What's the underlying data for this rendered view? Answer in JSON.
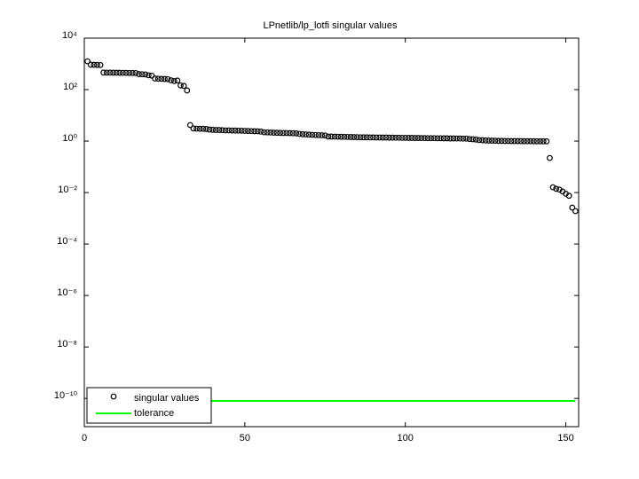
{
  "chart_data": {
    "type": "scatter",
    "title": "LPnetlib/lp_lotfi singular values",
    "log_y": true,
    "legend": "lower left",
    "xlim": [
      0,
      154
    ],
    "xticks": [
      0,
      50,
      100,
      150
    ],
    "ylim": [
      8e-12,
      10000
    ],
    "yticks": [
      {
        "value": 1e-10,
        "label": "10⁻¹⁰"
      },
      {
        "value": 1e-08,
        "label": "10⁻⁸"
      },
      {
        "value": 1e-06,
        "label": "10⁻⁶"
      },
      {
        "value": 0.0001,
        "label": "10⁻⁴"
      },
      {
        "value": 0.01,
        "label": "10⁻²"
      },
      {
        "value": 1,
        "label": "10⁰"
      },
      {
        "value": 100,
        "label": "10²"
      },
      {
        "value": 10000,
        "label": "10⁴"
      }
    ],
    "series": [
      {
        "name": "singular values",
        "color": "#000000",
        "mode": "markers",
        "x": [
          1,
          2,
          3,
          4,
          5,
          6,
          7,
          8,
          9,
          10,
          11,
          12,
          13,
          14,
          15,
          16,
          17,
          18,
          19,
          20,
          21,
          22,
          23,
          24,
          25,
          26,
          27,
          28,
          29,
          30,
          31,
          32,
          33,
          34,
          35,
          36,
          37,
          38,
          39,
          40,
          41,
          42,
          43,
          44,
          45,
          46,
          47,
          48,
          49,
          50,
          51,
          52,
          53,
          54,
          55,
          56,
          57,
          58,
          59,
          60,
          61,
          62,
          63,
          64,
          65,
          66,
          67,
          68,
          69,
          70,
          71,
          72,
          73,
          74,
          75,
          76,
          77,
          78,
          79,
          80,
          81,
          82,
          83,
          84,
          85,
          86,
          87,
          88,
          89,
          90,
          91,
          92,
          93,
          94,
          95,
          96,
          97,
          98,
          99,
          100,
          101,
          102,
          103,
          104,
          105,
          106,
          107,
          108,
          109,
          110,
          111,
          112,
          113,
          114,
          115,
          116,
          117,
          118,
          119,
          120,
          121,
          122,
          123,
          124,
          125,
          126,
          127,
          128,
          129,
          130,
          131,
          132,
          133,
          134,
          135,
          136,
          137,
          138,
          139,
          140,
          141,
          142,
          143,
          144,
          145,
          146,
          147,
          148,
          149,
          150,
          151,
          152,
          153
        ],
        "values": [
          1260,
          930,
          920,
          910,
          900,
          460,
          458,
          456,
          454,
          452,
          450,
          448,
          446,
          444,
          442,
          440,
          400,
          395,
          390,
          360,
          350,
          270,
          265,
          262,
          258,
          255,
          230,
          215,
          225,
          145,
          140,
          93,
          4.2,
          3.1,
          3.05,
          3.0,
          3.0,
          2.95,
          2.8,
          2.75,
          2.7,
          2.7,
          2.65,
          2.6,
          2.6,
          2.58,
          2.56,
          2.55,
          2.53,
          2.5,
          2.48,
          2.45,
          2.42,
          2.4,
          2.35,
          2.2,
          2.18,
          2.15,
          2.12,
          2.1,
          2.08,
          2.06,
          2.05,
          2.04,
          2.02,
          2.0,
          1.9,
          1.85,
          1.82,
          1.78,
          1.75,
          1.72,
          1.7,
          1.68,
          1.65,
          1.5,
          1.5,
          1.49,
          1.48,
          1.47,
          1.46,
          1.45,
          1.44,
          1.43,
          1.42,
          1.41,
          1.4,
          1.4,
          1.39,
          1.39,
          1.38,
          1.38,
          1.37,
          1.37,
          1.36,
          1.36,
          1.35,
          1.35,
          1.34,
          1.34,
          1.33,
          1.33,
          1.32,
          1.32,
          1.31,
          1.31,
          1.3,
          1.3,
          1.3,
          1.29,
          1.29,
          1.28,
          1.28,
          1.27,
          1.27,
          1.26,
          1.26,
          1.25,
          1.25,
          1.2,
          1.18,
          1.15,
          1.1,
          1.08,
          1.06,
          1.05,
          1.04,
          1.03,
          1.02,
          1.02,
          1.01,
          1.01,
          1.0,
          1.0,
          1.0,
          1.0,
          0.99,
          0.99,
          0.99,
          0.99,
          0.98,
          0.98,
          0.98,
          0.98,
          0.22,
          0.016,
          0.014,
          0.013,
          0.011,
          0.009,
          0.0075,
          0.0026,
          0.0019
        ]
      },
      {
        "name": "tolerance",
        "color": "#00ff00",
        "mode": "line",
        "x": [
          1,
          153
        ],
        "values": [
          8e-11,
          8e-11
        ]
      }
    ]
  }
}
